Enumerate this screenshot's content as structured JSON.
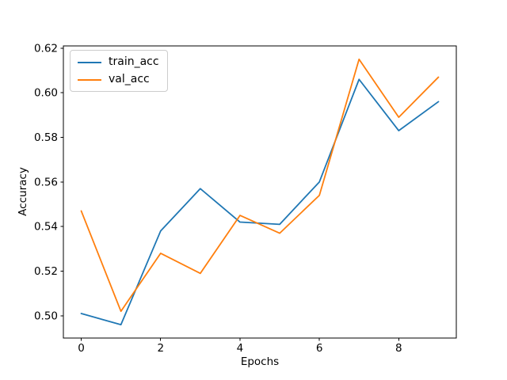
{
  "figure": {
    "background": "#ffffff"
  },
  "chart_data": {
    "type": "line",
    "title": "",
    "xlabel": "Epochs",
    "ylabel": "Accuracy",
    "x": [
      0,
      1,
      2,
      3,
      4,
      5,
      6,
      7,
      8,
      9
    ],
    "series": [
      {
        "name": "train_acc",
        "color": "#1f77b4",
        "values": [
          0.501,
          0.496,
          0.538,
          0.557,
          0.542,
          0.541,
          0.56,
          0.606,
          0.583,
          0.596
        ]
      },
      {
        "name": "val_acc",
        "color": "#ff7f0e",
        "values": [
          0.547,
          0.502,
          0.528,
          0.519,
          0.545,
          0.537,
          0.554,
          0.615,
          0.589,
          0.607
        ]
      }
    ],
    "xlim": [
      -0.45,
      9.45
    ],
    "ylim": [
      0.49,
      0.621
    ],
    "xticks": {
      "values": [
        0,
        2,
        4,
        6,
        8
      ],
      "labels": [
        "0",
        "2",
        "4",
        "6",
        "8"
      ]
    },
    "yticks": {
      "values": [
        0.5,
        0.52,
        0.54,
        0.56,
        0.58,
        0.6,
        0.62
      ],
      "labels": [
        "0.50",
        "0.52",
        "0.54",
        "0.56",
        "0.58",
        "0.60",
        "0.62"
      ]
    },
    "grid": false,
    "legend": {
      "position": "upper-left",
      "entries": [
        "train_acc",
        "val_acc"
      ]
    },
    "axis_color": "#000000",
    "text_color": "#000000"
  }
}
